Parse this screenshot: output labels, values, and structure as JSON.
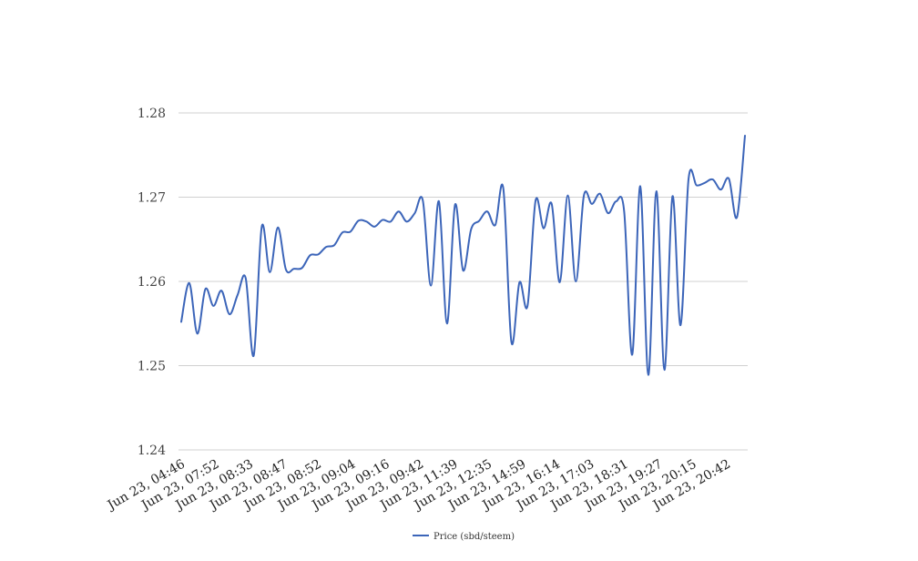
{
  "chart_data": {
    "type": "line",
    "grid": true,
    "legend_position": "bottom-center",
    "line_color": "#3c65b9",
    "grid_color": "#d0d0d0",
    "ylim": [
      1.24,
      1.28
    ],
    "y_ticks": [
      {
        "value": 1.24,
        "label": "1.24"
      },
      {
        "value": 1.25,
        "label": "1.25"
      },
      {
        "value": 1.26,
        "label": "1.26"
      },
      {
        "value": 1.27,
        "label": "1.27"
      },
      {
        "value": 1.28,
        "label": "1.28"
      }
    ],
    "x_tick_labels": [
      "Jun 23, 04:46",
      "Jun 23, 07:52",
      "Jun 23, 08:33",
      "Jun 23, 08:47",
      "Jun 23, 08:52",
      "Jun 23, 09:04",
      "Jun 23, 09:16",
      "Jun 23, 09:42",
      "Jun 23, 11:39",
      "Jun 23, 12:35",
      "Jun 23, 14:59",
      "Jun 23, 16:14",
      "Jun 23, 17:03",
      "Jun 23, 18:31",
      "Jun 23, 19:27",
      "Jun 23, 20:15",
      "Jun 23, 20:42"
    ],
    "series": [
      {
        "name": "Price (sbd/steem)",
        "values": [
          1.2552,
          1.2598,
          1.2538,
          1.2591,
          1.2571,
          1.2589,
          1.2561,
          1.2584,
          1.2604,
          1.2512,
          1.2665,
          1.2611,
          1.2664,
          1.2614,
          1.2615,
          1.2616,
          1.2631,
          1.2632,
          1.2641,
          1.2643,
          1.2658,
          1.2659,
          1.2672,
          1.2671,
          1.2665,
          1.2673,
          1.2671,
          1.2683,
          1.2671,
          1.2681,
          1.2696,
          1.2595,
          1.2695,
          1.255,
          1.2691,
          1.2613,
          1.2662,
          1.2672,
          1.2683,
          1.2667,
          1.271,
          1.2528,
          1.2599,
          1.2571,
          1.2696,
          1.2663,
          1.2692,
          1.2599,
          1.2702,
          1.26,
          1.2702,
          1.2692,
          1.2704,
          1.2681,
          1.2695,
          1.2683,
          1.2513,
          1.2713,
          1.2489,
          1.2707,
          1.2495,
          1.2701,
          1.2548,
          1.2722,
          1.2714,
          1.2717,
          1.2721,
          1.2709,
          1.2722,
          1.2676,
          1.2773
        ]
      }
    ]
  }
}
